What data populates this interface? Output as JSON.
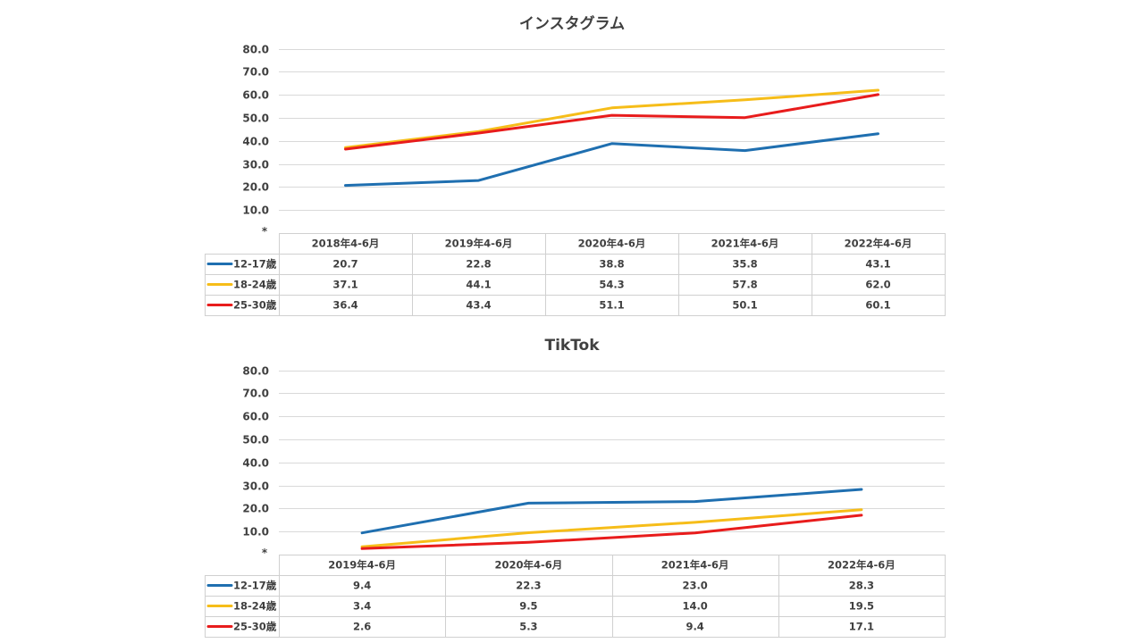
{
  "chart_data": [
    {
      "type": "line",
      "title": "インスタグラム",
      "origin_label": "*",
      "categories": [
        "2018年4-6月",
        "2019年4-6月",
        "2020年4-6月",
        "2021年4-6月",
        "2022年4-6月"
      ],
      "yticks": [
        "80.0",
        "70.0",
        "60.0",
        "50.0",
        "40.0",
        "30.0",
        "20.0",
        "10.0"
      ],
      "ylim": [
        0,
        80
      ],
      "grid": true,
      "legend": "data-table",
      "series": [
        {
          "name": "12-17歳",
          "color": "#1f6fb0",
          "values": [
            20.7,
            22.8,
            38.8,
            35.8,
            43.1
          ],
          "labels": [
            "20.7",
            "22.8",
            "38.8",
            "35.8",
            "43.1"
          ]
        },
        {
          "name": "18-24歳",
          "color": "#f6bd19",
          "values": [
            37.1,
            44.1,
            54.3,
            57.8,
            62.0
          ],
          "labels": [
            "37.1",
            "44.1",
            "54.3",
            "57.8",
            "62.0"
          ]
        },
        {
          "name": "25-30歳",
          "color": "#e81c1c",
          "values": [
            36.4,
            43.4,
            51.1,
            50.1,
            60.1
          ],
          "labels": [
            "36.4",
            "43.4",
            "51.1",
            "50.1",
            "60.1"
          ]
        }
      ]
    },
    {
      "type": "line",
      "title": "TikTok",
      "origin_label": "*",
      "categories": [
        "2019年4-6月",
        "2020年4-6月",
        "2021年4-6月",
        "2022年4-6月"
      ],
      "yticks": [
        "80.0",
        "70.0",
        "60.0",
        "50.0",
        "40.0",
        "30.0",
        "20.0",
        "10.0"
      ],
      "ylim": [
        0,
        80
      ],
      "grid": true,
      "legend": "data-table",
      "series": [
        {
          "name": "12-17歳",
          "color": "#1f6fb0",
          "values": [
            9.4,
            22.3,
            23.0,
            28.3
          ],
          "labels": [
            "9.4",
            "22.3",
            "23.0",
            "28.3"
          ]
        },
        {
          "name": "18-24歳",
          "color": "#f6bd19",
          "values": [
            3.4,
            9.5,
            14.0,
            19.5
          ],
          "labels": [
            "3.4",
            "9.5",
            "14.0",
            "19.5"
          ]
        },
        {
          "name": "25-30歳",
          "color": "#e81c1c",
          "values": [
            2.6,
            5.3,
            9.4,
            17.1
          ],
          "labels": [
            "2.6",
            "5.3",
            "9.4",
            "17.1"
          ]
        }
      ]
    }
  ]
}
